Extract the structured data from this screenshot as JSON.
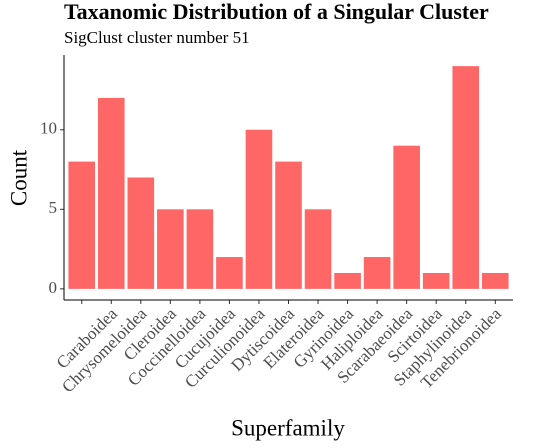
{
  "chart_data": {
    "type": "bar",
    "title": "Taxanomic Distribution of a Singular Cluster",
    "subtitle": "SigClust cluster number 51",
    "x_label": "Superfamily",
    "y_label": "Count",
    "categories": [
      null,
      "Caraboidea",
      "Chrysomeloidea",
      "Cleroidea",
      "Coccinelloidea",
      "Cucujoidea",
      "Curculionoidea",
      "Dytiscoidea",
      "Elateroidea",
      "Gyrinoidea",
      "Haliploidea",
      "Scarabaeoidea",
      "Scirtoidea",
      "Staphylinoidea",
      "Tenebrionoidea"
    ],
    "values": [
      8,
      12,
      7,
      5,
      5,
      2,
      10,
      8,
      5,
      1,
      2,
      9,
      1,
      14,
      1
    ],
    "color": "#ff6666",
    "ylim": [
      -0.7,
      14.7
    ],
    "yticks": [
      0,
      5,
      10
    ],
    "grid": false
  }
}
